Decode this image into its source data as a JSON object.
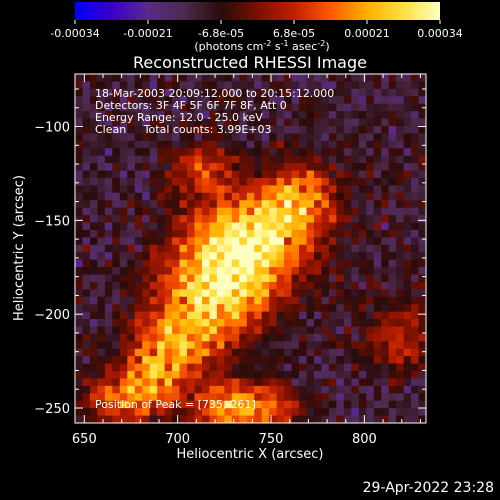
{
  "colorbar": {
    "ticks": [
      "-0.00034",
      "-0.00021",
      "-6.8e-05",
      "6.8e-05",
      "0.00021",
      "0.00034"
    ],
    "units_text": "(photons cm",
    "units_sup1": "-2",
    "units_mid": " s",
    "units_sup2": "-1",
    "units_end": " asec",
    "units_sup3": "-2",
    "units_close": ")",
    "colormap": [
      "#0000ff",
      "#3a00c8",
      "#5a2a8a",
      "#4d2a4d",
      "#2a0b0b",
      "#7a1000",
      "#c02000",
      "#ff5a00",
      "#ffb000",
      "#ffe040",
      "#ffffc0"
    ]
  },
  "chart_data": {
    "type": "heatmap",
    "title": "Reconstructed RHESSI Image",
    "xlabel": "Heliocentric X (arcsec)",
    "ylabel": "Heliocentric Y (arcsec)",
    "xlim": [
      645,
      833
    ],
    "ylim": [
      -258,
      -72
    ],
    "x_ticks": [
      650,
      700,
      750,
      800
    ],
    "y_ticks": [
      -100,
      -150,
      -200,
      -250
    ],
    "value_range": [
      -0.00034,
      0.00034
    ],
    "annotations": [
      "18-Mar-2003 20:09:12.000 to 20:15:12.000",
      "Detectors: 3F 4F 5F 6F 7F 8F, Att 0",
      "Energy Range: 12.0 - 25.0 keV",
      "Clean     Total counts: 3.99E+03"
    ],
    "peak_label": "Position of Peak = [735,-261]",
    "sources": [
      {
        "x": 738,
        "y": -160,
        "sx": 22,
        "sy": 16,
        "amp": 1.0
      },
      {
        "x": 722,
        "y": -188,
        "sx": 20,
        "sy": 16,
        "amp": 0.9
      },
      {
        "x": 700,
        "y": -215,
        "sx": 16,
        "sy": 14,
        "amp": 0.6
      },
      {
        "x": 765,
        "y": -138,
        "sx": 14,
        "sy": 12,
        "amp": 0.65
      },
      {
        "x": 712,
        "y": -122,
        "sx": 12,
        "sy": 10,
        "amp": 0.45
      },
      {
        "x": 735,
        "y": -250,
        "sx": 18,
        "sy": 9,
        "amp": 0.8
      },
      {
        "x": 672,
        "y": -245,
        "sx": 14,
        "sy": 10,
        "amp": 0.55
      },
      {
        "x": 688,
        "y": -232,
        "sx": 12,
        "sy": 10,
        "amp": 0.45
      },
      {
        "x": 818,
        "y": -212,
        "sx": 12,
        "sy": 12,
        "amp": 0.4
      }
    ]
  },
  "timestamp": "29-Apr-2022 23:28"
}
